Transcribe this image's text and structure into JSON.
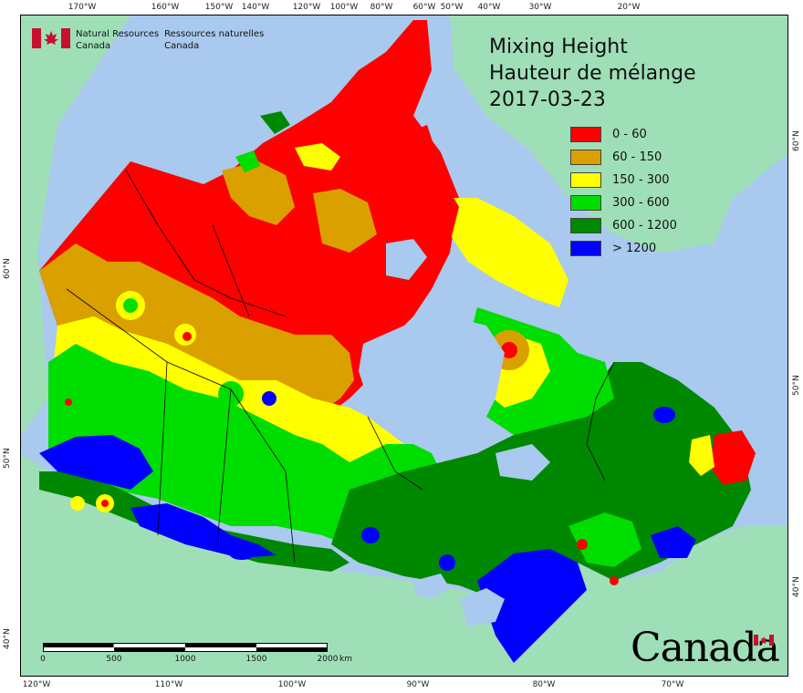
{
  "map": {
    "title_en": "Mixing Height",
    "title_fr": "Hauteur de mélange",
    "date": "2017-03-23",
    "agency_en_line1": "Natural Resources",
    "agency_en_line2": "Canada",
    "agency_fr_line1": "Ressources naturelles",
    "agency_fr_line2": "Canada",
    "wordmark": "Canada",
    "legend": [
      {
        "label": "0 - 60",
        "color": "#ff0000"
      },
      {
        "label": "60 - 150",
        "color": "#daa000"
      },
      {
        "label": "150 - 300",
        "color": "#ffff00"
      },
      {
        "label": "300 - 600",
        "color": "#00dd00"
      },
      {
        "label": "600 - 1200",
        "color": "#008800"
      },
      {
        "label": "> 1200",
        "color": "#0000ff"
      }
    ],
    "colors": {
      "water": "#a9c9ee",
      "land_outside": "#9fdfb7"
    },
    "scale": {
      "labels": [
        "0",
        "500",
        "1000",
        "1500",
        "2000"
      ],
      "unit": "km"
    },
    "ticks_top": [
      "170°W",
      "160°W",
      "150°W",
      "140°W",
      "120°W",
      "100°W",
      "80°W",
      "60°W",
      "50°W",
      "40°W",
      "30°W",
      "20°W"
    ],
    "ticks_bottom": [
      "120°W",
      "110°W",
      "100°W",
      "90°W",
      "80°W",
      "70°W"
    ],
    "ticks_left": [
      "60°N",
      "50°N",
      "40°N"
    ],
    "ticks_right": [
      "60°N",
      "50°N",
      "40°N"
    ]
  }
}
